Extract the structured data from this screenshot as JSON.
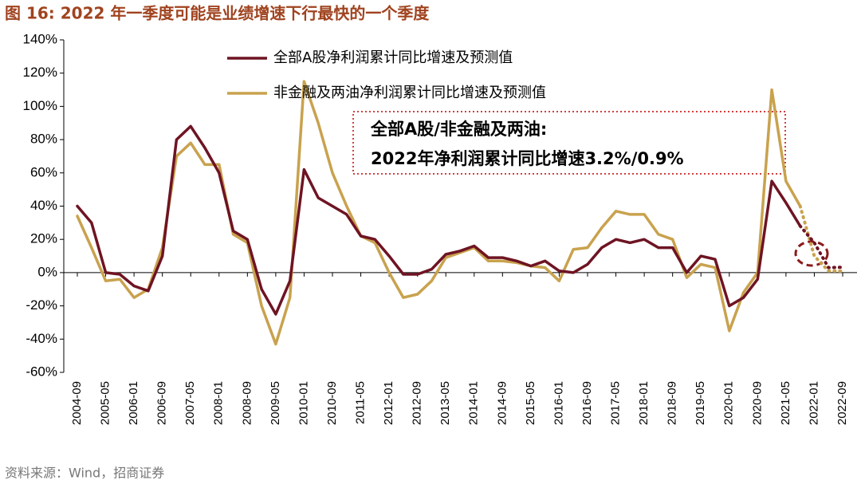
{
  "chart_data": {
    "type": "line",
    "title": "图 16:  2022 年一季度可能是业绩增速下行最快的一个季度",
    "source": "资料来源：Wind，招商证券",
    "annotation": [
      "全部A股/非金融及两油:",
      "2022年净利润累计同比增速3.2%/0.9%"
    ],
    "categories": [
      "2004-09",
      null,
      "2005-05",
      null,
      "2006-01",
      null,
      "2006-09",
      null,
      "2007-05",
      null,
      "2008-01",
      null,
      "2008-09",
      null,
      "2009-05",
      null,
      "2010-01",
      null,
      "2010-09",
      null,
      "2011-05",
      null,
      "2012-01",
      null,
      "2012-09",
      null,
      "2013-05",
      null,
      "2014-01",
      null,
      "2014-09",
      null,
      "2015-05",
      null,
      "2016-01",
      null,
      "2016-09",
      null,
      "2017-05",
      null,
      "2018-01",
      null,
      "2018-09",
      null,
      "2019-05",
      null,
      "2020-01",
      null,
      "2020-09",
      null,
      "2021-05",
      null,
      "2022-01",
      null,
      "2022-09"
    ],
    "series": [
      {
        "name": "全部A股净利润累计同比增速及预测值",
        "color": "#6e1423",
        "values": [
          40,
          30,
          0,
          -1,
          -8,
          -11,
          10,
          80,
          88,
          75,
          60,
          25,
          20,
          -10,
          -25,
          -5,
          62,
          45,
          40,
          35,
          22,
          20,
          10,
          -1,
          -1,
          2,
          11,
          13,
          16,
          9,
          9,
          7,
          4,
          7,
          1,
          0,
          5,
          15,
          20,
          18,
          20,
          15,
          15,
          0,
          10,
          8,
          -20,
          -15,
          -4,
          55,
          42,
          28,
          null,
          null,
          null
        ],
        "forecast": [
          null,
          null,
          null,
          null,
          null,
          null,
          null,
          null,
          null,
          null,
          null,
          null,
          null,
          null,
          null,
          null,
          null,
          null,
          null,
          null,
          null,
          null,
          null,
          null,
          null,
          null,
          null,
          null,
          null,
          null,
          null,
          null,
          null,
          null,
          null,
          null,
          null,
          null,
          null,
          null,
          null,
          null,
          null,
          null,
          null,
          null,
          null,
          null,
          null,
          null,
          null,
          28,
          18,
          3,
          3.2
        ]
      },
      {
        "name": "非金融及两油净利润累计同比增速及预测值",
        "color": "#c9a24e",
        "values": [
          34,
          15,
          -5,
          -4,
          -15,
          -10,
          15,
          70,
          78,
          65,
          65,
          23,
          18,
          -20,
          -43,
          -15,
          115,
          90,
          60,
          40,
          22,
          18,
          0,
          -15,
          -13,
          -5,
          9,
          12,
          15,
          7,
          7,
          6,
          4,
          3,
          -5,
          14,
          15,
          27,
          37,
          35,
          35,
          23,
          20,
          -3,
          5,
          3,
          -35,
          -12,
          0,
          110,
          55,
          40,
          null,
          null,
          null
        ],
        "forecast": [
          null,
          null,
          null,
          null,
          null,
          null,
          null,
          null,
          null,
          null,
          null,
          null,
          null,
          null,
          null,
          null,
          null,
          null,
          null,
          null,
          null,
          null,
          null,
          null,
          null,
          null,
          null,
          null,
          null,
          null,
          null,
          null,
          null,
          null,
          null,
          null,
          null,
          null,
          null,
          null,
          null,
          null,
          null,
          null,
          null,
          null,
          null,
          null,
          null,
          null,
          null,
          40,
          10,
          1,
          0.9
        ]
      }
    ],
    "ylim": [
      -60,
      140
    ],
    "yticks": [
      {
        "value": -60,
        "label": "-60%"
      },
      {
        "value": -40,
        "label": "-40%"
      },
      {
        "value": -20,
        "label": "-20%"
      },
      {
        "value": 0,
        "label": "0%"
      },
      {
        "value": 20,
        "label": "20%"
      },
      {
        "value": 40,
        "label": "40%"
      },
      {
        "value": 60,
        "label": "60%"
      },
      {
        "value": 80,
        "label": "80%"
      },
      {
        "value": 100,
        "label": "100%"
      },
      {
        "value": 120,
        "label": "120%"
      },
      {
        "value": 140,
        "label": "140%"
      }
    ]
  }
}
